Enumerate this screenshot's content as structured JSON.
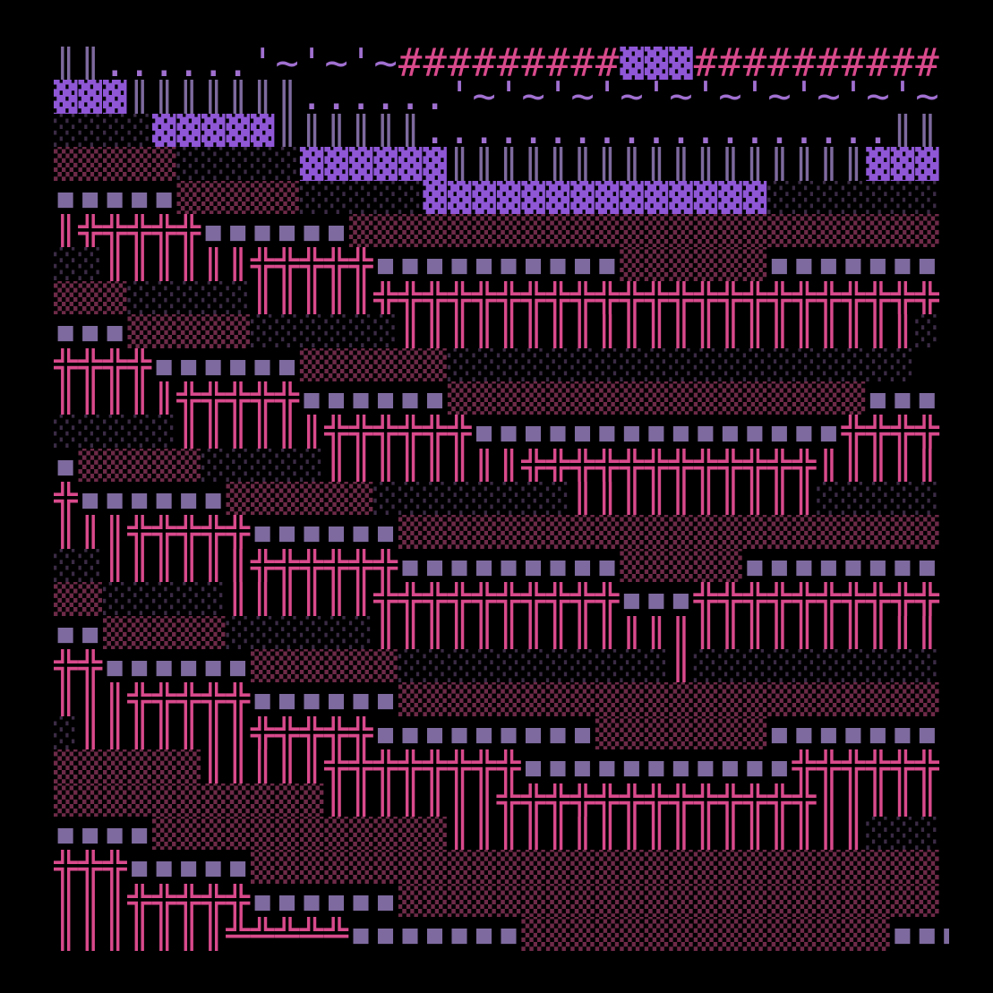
{
  "rows": [
    [
      {
        "text": "║║",
        "color": "#7e6a9e"
      },
      {
        "text": "......",
        "color": "#a070d0"
      },
      {
        "text": "'~'~'~",
        "color": "#a070d0"
      },
      {
        "text": "#########",
        "color": "#d94a8c"
      },
      {
        "text": "▓▓▓",
        "color": "#8f57d6"
      },
      {
        "text": "##########",
        "color": "#d94a8c"
      }
    ],
    [
      {
        "text": "▓▓▓",
        "color": "#8f57d6"
      },
      {
        "text": "║║║║║║║",
        "color": "#7e6a9e"
      },
      {
        "text": "......",
        "color": "#a070d0"
      },
      {
        "text": "'~'~'~'~'~'~'~'~'~'~",
        "color": "#a070d0"
      }
    ],
    [
      {
        "text": "░░░░",
        "color": "#3b2b45"
      },
      {
        "text": "▓▓▓▓▓",
        "color": "#8f57d6"
      },
      {
        "text": "║║║║║║",
        "color": "#7e6a9e"
      },
      {
        "text": "...................",
        "color": "#a070d0"
      },
      {
        "text": "║║",
        "color": "#7e6a9e"
      }
    ],
    [
      {
        "text": "▒▒▒▒▒",
        "color": "#6e2a48"
      },
      {
        "text": "░░░░░",
        "color": "#3b2b45"
      },
      {
        "text": "▓▓▓▓▓▓",
        "color": "#8f57d6"
      },
      {
        "text": "║║║║║║║║║║║║║║║║║",
        "color": "#7e6a9e"
      },
      {
        "text": "▓▓▓",
        "color": "#8f57d6"
      }
    ],
    [
      {
        "text": "▪▪▪▪▪",
        "color": "#7e6a9e"
      },
      {
        "text": "▒▒▒▒▒",
        "color": "#6e2a48"
      },
      {
        "text": "░░░░░",
        "color": "#3b2b45"
      },
      {
        "text": "▓▓▓▓▓▓▓▓▓▓▓▓▓▓",
        "color": "#8f57d6"
      },
      {
        "text": "░░░░░░░",
        "color": "#3b2b45"
      }
    ],
    [
      {
        "text": "║",
        "color": "#d94a8c"
      },
      {
        "text": "╬╬╬╬╬",
        "color": "#d94a8c"
      },
      {
        "text": "▪▪▪▪▪▪",
        "color": "#7e6a9e"
      },
      {
        "text": "▒▒▒▒▒▒▒▒▒▒▒▒▒▒▒▒▒▒▒▒▒▒▒▒",
        "color": "#6e2a48"
      }
    ],
    [
      {
        "text": "░░",
        "color": "#3b2b45"
      },
      {
        "text": "║║║║║║",
        "color": "#d94a8c"
      },
      {
        "text": "╬╬╬╬╬",
        "color": "#d94a8c"
      },
      {
        "text": "▪▪▪▪▪▪▪▪▪▪",
        "color": "#7e6a9e"
      },
      {
        "text": "▒▒▒▒▒▒",
        "color": "#6e2a48"
      },
      {
        "text": "▪▪▪▪▪▪▪",
        "color": "#7e6a9e"
      }
    ],
    [
      {
        "text": "▒▒▒",
        "color": "#6e2a48"
      },
      {
        "text": "░░░░░",
        "color": "#3b2b45"
      },
      {
        "text": "║║║║║",
        "color": "#d94a8c"
      },
      {
        "text": "╬╬╬╬╬╬╬╬╬╬╬╬╬╬╬╬╬╬╬╬╬╬╬",
        "color": "#d94a8c"
      }
    ],
    [
      {
        "text": "▪▪▪",
        "color": "#7e6a9e"
      },
      {
        "text": "▒▒▒▒▒",
        "color": "#6e2a48"
      },
      {
        "text": "░░░░░░",
        "color": "#3b2b45"
      },
      {
        "text": "║║║║║║║║║║║║║║║║║║║║║",
        "color": "#d94a8c"
      },
      {
        "text": "░",
        "color": "#3b2b45"
      }
    ],
    [
      {
        "text": "╬╬╬╬",
        "color": "#d94a8c"
      },
      {
        "text": "▪▪▪▪▪▪",
        "color": "#7e6a9e"
      },
      {
        "text": "▒▒▒▒▒▒",
        "color": "#6e2a48"
      },
      {
        "text": "░░░░░░░░░░░░░░░░░░░",
        "color": "#3b2b45"
      }
    ],
    [
      {
        "text": "║║║║║",
        "color": "#d94a8c"
      },
      {
        "text": "╬╬╬╬╬",
        "color": "#d94a8c"
      },
      {
        "text": "▪▪▪▪▪▪",
        "color": "#7e6a9e"
      },
      {
        "text": "▒▒▒▒▒▒▒▒▒▒▒▒▒▒▒▒▒",
        "color": "#6e2a48"
      },
      {
        "text": "▪▪▪",
        "color": "#7e6a9e"
      }
    ],
    [
      {
        "text": "░░░░░",
        "color": "#3b2b45"
      },
      {
        "text": "║║║║║║",
        "color": "#d94a8c"
      },
      {
        "text": "╬╬╬╬╬╬",
        "color": "#d94a8c"
      },
      {
        "text": "▪▪▪▪▪▪▪▪▪▪▪▪▪▪▪",
        "color": "#7e6a9e"
      },
      {
        "text": "╬╬╬╬",
        "color": "#d94a8c"
      }
    ],
    [
      {
        "text": "▪",
        "color": "#7e6a9e"
      },
      {
        "text": "▒▒▒▒▒",
        "color": "#6e2a48"
      },
      {
        "text": "░░░░░",
        "color": "#3b2b45"
      },
      {
        "text": "║║║║║║║║",
        "color": "#d94a8c"
      },
      {
        "text": "╬╬╬╬╬╬╬╬╬╬╬╬",
        "color": "#d94a8c"
      },
      {
        "text": "║║║║║",
        "color": "#d94a8c"
      }
    ],
    [
      {
        "text": "╬",
        "color": "#d94a8c"
      },
      {
        "text": "▪▪▪▪▪▪",
        "color": "#7e6a9e"
      },
      {
        "text": "▒▒▒▒▒▒",
        "color": "#6e2a48"
      },
      {
        "text": "░░░░░░░░",
        "color": "#3b2b45"
      },
      {
        "text": "║║║║║║║║║║",
        "color": "#d94a8c"
      },
      {
        "text": "░░░░░",
        "color": "#3b2b45"
      }
    ],
    [
      {
        "text": "║║║",
        "color": "#d94a8c"
      },
      {
        "text": "╬╬╬╬╬",
        "color": "#d94a8c"
      },
      {
        "text": "▪▪▪▪▪▪",
        "color": "#7e6a9e"
      },
      {
        "text": "▒▒▒▒▒▒▒▒▒▒▒▒▒▒▒▒▒▒▒▒▒▒",
        "color": "#6e2a48"
      }
    ],
    [
      {
        "text": "░░",
        "color": "#3b2b45"
      },
      {
        "text": "║║║║║║",
        "color": "#d94a8c"
      },
      {
        "text": "╬╬╬╬╬╬",
        "color": "#d94a8c"
      },
      {
        "text": "▪▪▪▪▪▪▪▪▪",
        "color": "#7e6a9e"
      },
      {
        "text": "▒▒▒▒▒",
        "color": "#6e2a48"
      },
      {
        "text": "▪▪▪▪▪▪▪▪",
        "color": "#7e6a9e"
      }
    ],
    [
      {
        "text": "▒▒",
        "color": "#6e2a48"
      },
      {
        "text": "░░░░░",
        "color": "#3b2b45"
      },
      {
        "text": "║║║║║║",
        "color": "#d94a8c"
      },
      {
        "text": "╬╬╬╬╬╬╬╬╬╬",
        "color": "#d94a8c"
      },
      {
        "text": "▪▪▪",
        "color": "#7e6a9e"
      },
      {
        "text": "╬╬╬╬╬╬╬╬╬╬",
        "color": "#d94a8c"
      }
    ],
    [
      {
        "text": "▪▪",
        "color": "#7e6a9e"
      },
      {
        "text": "▒▒▒▒▒",
        "color": "#6e2a48"
      },
      {
        "text": "░░░░░░",
        "color": "#3b2b45"
      },
      {
        "text": "║║║║║║║║║║║║║║║║║║║║║║║",
        "color": "#d94a8c"
      }
    ],
    [
      {
        "text": "╬╬",
        "color": "#d94a8c"
      },
      {
        "text": "▪▪▪▪▪▪",
        "color": "#7e6a9e"
      },
      {
        "text": "▒▒▒▒▒▒",
        "color": "#6e2a48"
      },
      {
        "text": "░░░░░░░░░░░",
        "color": "#3b2b45"
      },
      {
        "text": "║",
        "color": "#d94a8c"
      },
      {
        "text": "░░░░░░░░░░",
        "color": "#3b2b45"
      }
    ],
    [
      {
        "text": "║║║",
        "color": "#d94a8c"
      },
      {
        "text": "╬╬╬╬╬",
        "color": "#d94a8c"
      },
      {
        "text": "▪▪▪▪▪▪",
        "color": "#7e6a9e"
      },
      {
        "text": "▒▒▒▒▒▒▒▒▒▒▒▒▒▒▒▒▒▒▒▒▒▒",
        "color": "#6e2a48"
      }
    ],
    [
      {
        "text": "░",
        "color": "#3b2b45"
      },
      {
        "text": "║║║║║║║",
        "color": "#d94a8c"
      },
      {
        "text": "╬╬╬╬╬",
        "color": "#d94a8c"
      },
      {
        "text": "▪▪▪▪▪▪▪▪▪",
        "color": "#7e6a9e"
      },
      {
        "text": "▒▒▒▒▒▒▒",
        "color": "#6e2a48"
      },
      {
        "text": "▪▪▪▪▪▪▪",
        "color": "#7e6a9e"
      }
    ],
    [
      {
        "text": "▒▒▒▒▒▒",
        "color": "#6e2a48"
      },
      {
        "text": "║║║║║",
        "color": "#d94a8c"
      },
      {
        "text": "╬╬╬╬╬╬╬╬",
        "color": "#d94a8c"
      },
      {
        "text": "▪▪▪▪▪▪▪▪▪▪▪",
        "color": "#7e6a9e"
      },
      {
        "text": "╬╬╬╬╬╬",
        "color": "#d94a8c"
      }
    ],
    [
      {
        "text": "▒▒▒▒▒▒▒▒▒▒▒",
        "color": "#6e2a48"
      },
      {
        "text": "║║║║║║║",
        "color": "#d94a8c"
      },
      {
        "text": "╬╬╬╬╬╬╬╬╬╬╬╬╬",
        "color": "#d94a8c"
      },
      {
        "text": "║║║║║",
        "color": "#d94a8c"
      }
    ],
    [
      {
        "text": "▪▪▪▪",
        "color": "#7e6a9e"
      },
      {
        "text": "▒▒▒▒▒▒▒▒▒▒▒▒",
        "color": "#6e2a48"
      },
      {
        "text": "║║║║║║║║║║║║║║║║║",
        "color": "#d94a8c"
      },
      {
        "text": "░░░",
        "color": "#3b2b45"
      }
    ],
    [
      {
        "text": "╬╬╬",
        "color": "#d94a8c"
      },
      {
        "text": "▪▪▪▪▪",
        "color": "#7e6a9e"
      },
      {
        "text": "▒▒▒▒▒▒▒▒▒▒▒▒▒▒▒▒▒▒▒▒▒▒▒▒▒▒▒▒",
        "color": "#6e2a48"
      }
    ],
    [
      {
        "text": "║║║",
        "color": "#d94a8c"
      },
      {
        "text": "╬╬╬╬╬",
        "color": "#d94a8c"
      },
      {
        "text": "▪▪▪▪▪▪",
        "color": "#7e6a9e"
      },
      {
        "text": "▒▒▒▒▒▒▒▒▒▒▒▒▒▒▒▒▒▒▒▒▒▒",
        "color": "#6e2a48"
      }
    ],
    [
      {
        "text": "║║║║║║║",
        "color": "#d94a8c"
      },
      {
        "text": "╩╩╩╩╩",
        "color": "#d94a8c"
      },
      {
        "text": "▪▪▪▪▪▪▪",
        "color": "#7e6a9e"
      },
      {
        "text": "▒▒▒▒▒▒▒▒▒▒▒▒▒▒▒",
        "color": "#6e2a48"
      },
      {
        "text": "▪▪▪▪",
        "color": "#7e6a9e"
      }
    ]
  ]
}
